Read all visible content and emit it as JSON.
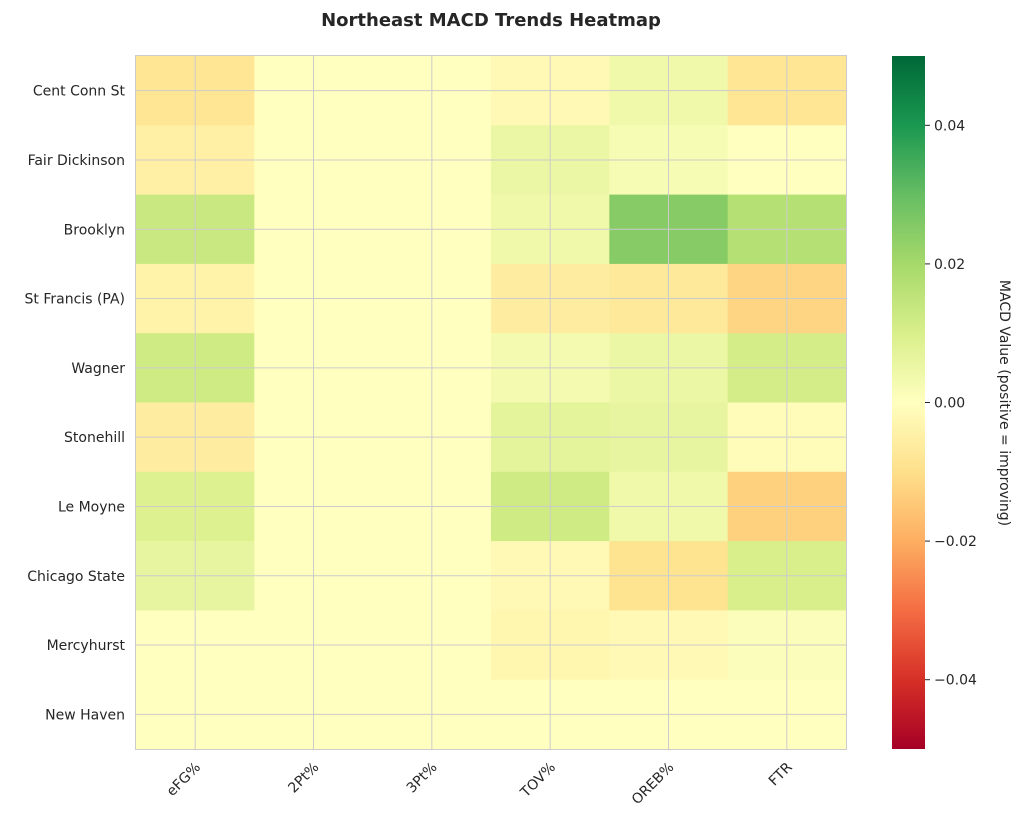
{
  "chart_data": {
    "type": "heatmap",
    "title": "Northeast MACD Trends Heatmap",
    "rows": [
      "Cent Conn St",
      "Fair Dickinson",
      "Brooklyn",
      "St Francis (PA)",
      "Wagner",
      "Stonehill",
      "Le Moyne",
      "Chicago State",
      "Mercyhurst",
      "New Haven"
    ],
    "columns": [
      "eFG%",
      "2Pt%",
      "3Pt%",
      "TOV%",
      "OREB%",
      "FTR"
    ],
    "values": [
      [
        -0.008,
        0.0,
        0.0,
        -0.002,
        0.004,
        -0.008
      ],
      [
        -0.005,
        0.0,
        0.0,
        0.005,
        0.002,
        0.0
      ],
      [
        0.013,
        0.0,
        0.0,
        0.004,
        0.025,
        0.017
      ],
      [
        -0.004,
        0.0,
        0.0,
        -0.006,
        -0.007,
        -0.012
      ],
      [
        0.012,
        0.0,
        0.0,
        0.003,
        0.005,
        0.011
      ],
      [
        -0.006,
        0.0,
        0.0,
        0.007,
        0.006,
        -0.001
      ],
      [
        0.009,
        0.0,
        0.0,
        0.012,
        0.004,
        -0.013
      ],
      [
        0.006,
        0.0,
        0.0,
        -0.002,
        -0.009,
        0.01
      ],
      [
        0.0,
        0.0,
        0.0,
        -0.003,
        -0.002,
        0.001
      ],
      [
        0.0,
        0.0,
        0.0,
        0.0,
        0.0,
        0.0
      ]
    ],
    "colorbar": {
      "label": "MACD Value (positive = improving)",
      "range": [
        -0.05,
        0.05
      ],
      "ticks": [
        0.04,
        0.02,
        0.0,
        -0.02,
        -0.04
      ],
      "tick_labels": [
        "0.04",
        "0.02",
        "0.00",
        "−0.02",
        "−0.04"
      ],
      "colormap": "RdYlGn"
    },
    "grid": true
  }
}
